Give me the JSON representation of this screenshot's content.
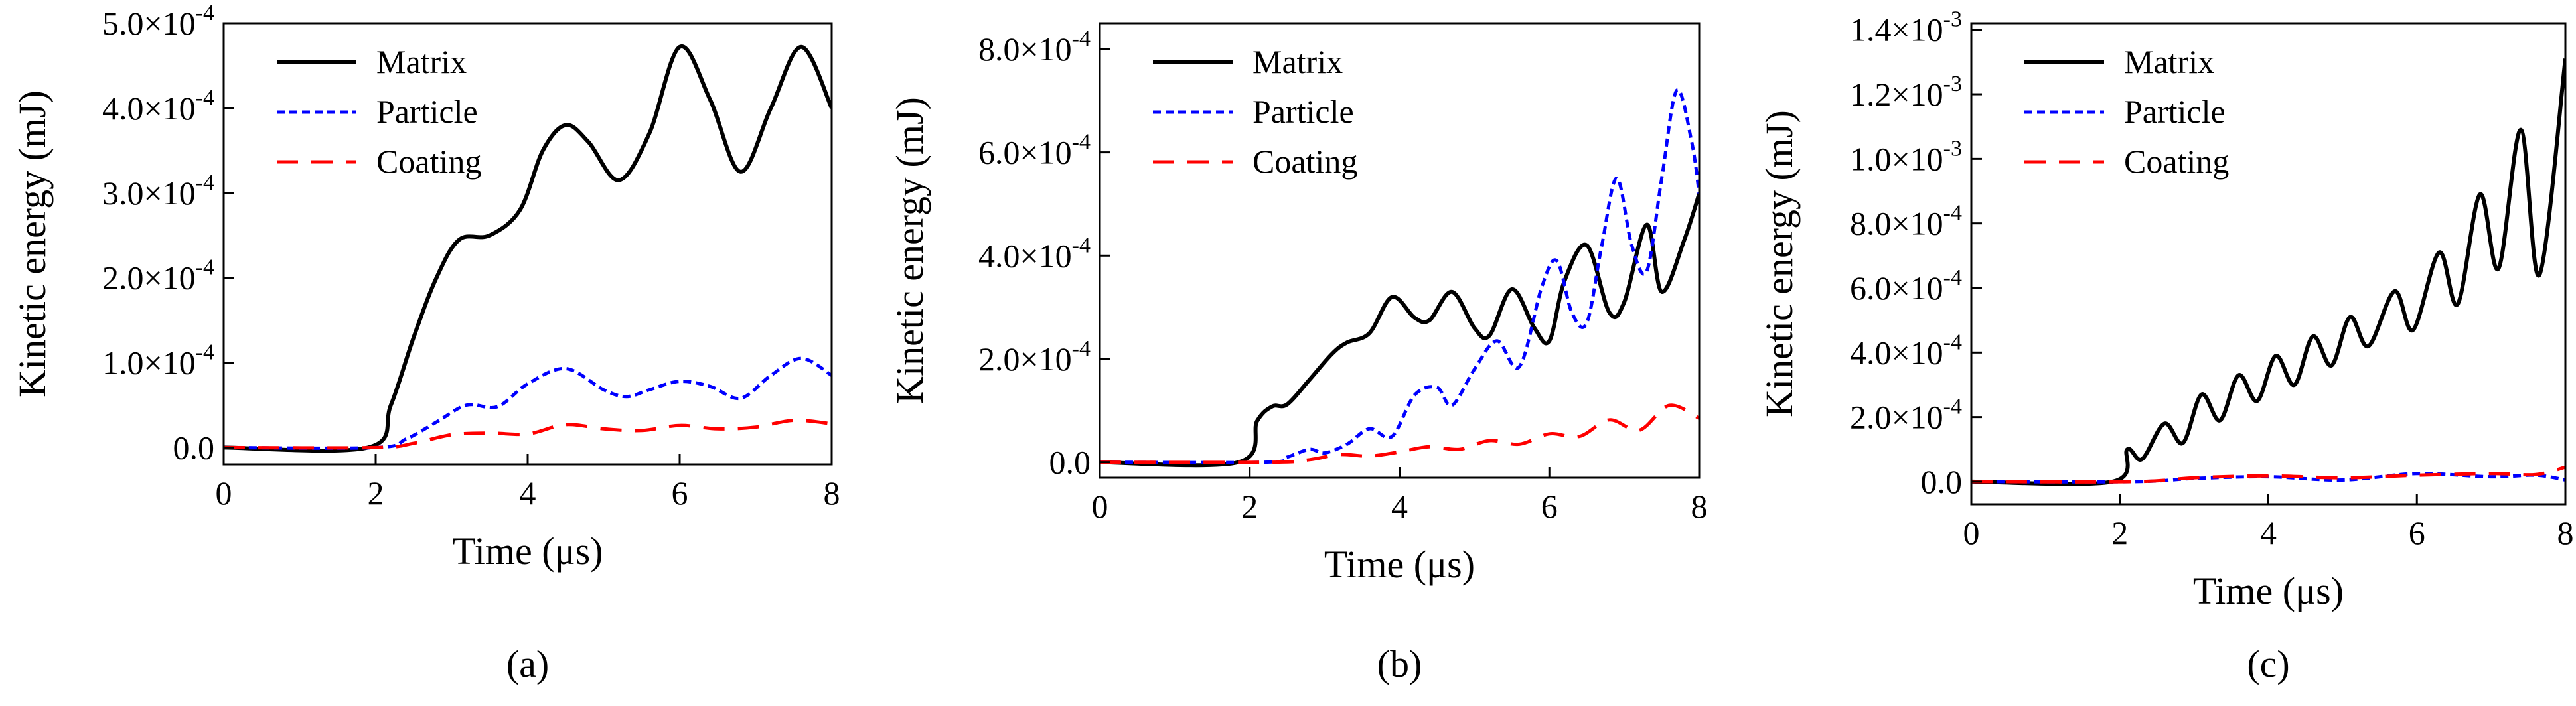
{
  "chart_data": [
    {
      "type": "line",
      "caption": "(a)",
      "xlabel": "Time (μs)",
      "ylabel": "Kinetic energy (mJ)",
      "xlim": [
        0,
        8
      ],
      "ylim": [
        -2e-05,
        0.0005
      ],
      "xticks": [
        0,
        2,
        4,
        6,
        8
      ],
      "xtick_labels": [
        "0",
        "2",
        "4",
        "6",
        "8"
      ],
      "yticks": [
        0,
        0.0001,
        0.0002,
        0.0003,
        0.0004,
        0.0005
      ],
      "ytick_labels": [
        "0.0",
        "1.0×10",
        "2.0×10",
        "3.0×10",
        "4.0×10",
        "5.0×10"
      ],
      "ytick_exponents": [
        "",
        "-4",
        "-4",
        "-4",
        "-4",
        "-4"
      ],
      "legend_position": "top-left",
      "grid": false,
      "series": [
        {
          "name": "Matrix",
          "color": "#000000",
          "dash": "solid",
          "x": [
            0,
            1.9,
            2.2,
            2.5,
            2.8,
            3.1,
            3.5,
            3.9,
            4.2,
            4.5,
            4.8,
            5.2,
            5.6,
            6.0,
            6.4,
            6.8,
            7.2,
            7.6,
            8.0
          ],
          "y": [
            0,
            0,
            5e-05,
            0.00013,
            0.0002,
            0.000245,
            0.00025,
            0.00028,
            0.00035,
            0.00038,
            0.00036,
            0.000315,
            0.00037,
            0.000472,
            0.00041,
            0.000325,
            0.0004,
            0.000472,
            0.0004
          ]
        },
        {
          "name": "Particle",
          "color": "#0000ff",
          "dash": "dotted",
          "x": [
            0,
            2.0,
            2.4,
            2.8,
            3.2,
            3.6,
            4.0,
            4.5,
            5.0,
            5.3,
            5.6,
            6.0,
            6.4,
            6.8,
            7.2,
            7.6,
            8.0
          ],
          "y": [
            0,
            0,
            1e-05,
            3e-05,
            5e-05,
            4.8e-05,
            7.5e-05,
            9.3e-05,
            6.8e-05,
            6e-05,
            6.8e-05,
            7.8e-05,
            7.2e-05,
            5.8e-05,
            8.5e-05,
            0.000105,
            8.5e-05
          ]
        },
        {
          "name": "Coating",
          "color": "#ff0000",
          "dash": "dashed",
          "x": [
            0,
            2.0,
            2.5,
            3.0,
            3.5,
            4.0,
            4.5,
            5.0,
            5.5,
            6.0,
            6.5,
            7.0,
            7.5,
            8.0
          ],
          "y": [
            0,
            0,
            5e-06,
            1.5e-05,
            1.7e-05,
            1.6e-05,
            2.7e-05,
            2.2e-05,
            2e-05,
            2.6e-05,
            2.2e-05,
            2.4e-05,
            3.2e-05,
            2.8e-05
          ]
        }
      ]
    },
    {
      "type": "line",
      "caption": "(b)",
      "xlabel": "Time (μs)",
      "ylabel": "Kinetic energy (mJ)",
      "xlim": [
        0,
        8
      ],
      "ylim": [
        -3e-05,
        0.00085
      ],
      "xticks": [
        0,
        2,
        4,
        6,
        8
      ],
      "xtick_labels": [
        "0",
        "2",
        "4",
        "6",
        "8"
      ],
      "yticks": [
        0,
        0.0002,
        0.0004,
        0.0006,
        0.0008
      ],
      "ytick_labels": [
        "0.0",
        "2.0×10",
        "4.0×10",
        "6.0×10",
        "8.0×10"
      ],
      "ytick_exponents": [
        "",
        "-4",
        "-4",
        "-4",
        "-4"
      ],
      "legend_position": "top-left",
      "grid": false,
      "series": [
        {
          "name": "Matrix",
          "color": "#000000",
          "dash": "solid",
          "x": [
            0,
            1.85,
            2.1,
            2.3,
            2.5,
            2.8,
            3.1,
            3.3,
            3.6,
            3.9,
            4.2,
            4.4,
            4.7,
            5.0,
            5.2,
            5.5,
            5.8,
            6.0,
            6.2,
            6.5,
            6.8,
            7.0,
            7.3,
            7.5,
            7.8,
            8.0
          ],
          "y": [
            0,
            0,
            8e-05,
            0.000108,
            0.000112,
            0.00016,
            0.00021,
            0.000232,
            0.00025,
            0.00032,
            0.00028,
            0.000275,
            0.00033,
            0.00026,
            0.000245,
            0.000335,
            0.00026,
            0.000235,
            0.00035,
            0.00042,
            0.00029,
            0.00031,
            0.00046,
            0.00033,
            0.00043,
            0.00052
          ]
        },
        {
          "name": "Particle",
          "color": "#0000ff",
          "dash": "dotted",
          "x": [
            0,
            2.2,
            2.5,
            2.8,
            3.0,
            3.3,
            3.6,
            3.9,
            4.2,
            4.5,
            4.7,
            5.0,
            5.3,
            5.6,
            5.9,
            6.1,
            6.3,
            6.5,
            6.7,
            6.9,
            7.1,
            7.3,
            7.5,
            7.7,
            7.9,
            8.0
          ],
          "y": [
            0,
            0,
            1e-05,
            2.5e-05,
            1.8e-05,
            3.5e-05,
            6.5e-05,
            5e-05,
            0.00013,
            0.000145,
            0.00011,
            0.00018,
            0.000235,
            0.000185,
            0.00034,
            0.00039,
            0.00029,
            0.00027,
            0.00042,
            0.00055,
            0.00042,
            0.00037,
            0.00055,
            0.00072,
            0.00062,
            0.00052
          ]
        },
        {
          "name": "Coating",
          "color": "#ff0000",
          "dash": "dashed",
          "x": [
            0,
            2.3,
            2.8,
            3.2,
            3.6,
            4.0,
            4.4,
            4.8,
            5.2,
            5.6,
            6.0,
            6.4,
            6.8,
            7.2,
            7.6,
            8.0
          ],
          "y": [
            0,
            0,
            5e-06,
            1.5e-05,
            1.2e-05,
            2e-05,
            3e-05,
            2.5e-05,
            4.2e-05,
            3.5e-05,
            5.5e-05,
            5e-05,
            8.2e-05,
            6.2e-05,
            0.00011,
            8.5e-05
          ]
        }
      ]
    },
    {
      "type": "line",
      "caption": "(c)",
      "xlabel": "Time (μs)",
      "ylabel": "Kinetic energy (mJ)",
      "xlim": [
        0,
        8
      ],
      "ylim": [
        -7e-05,
        0.00142
      ],
      "xticks": [
        0,
        2,
        4,
        6,
        8
      ],
      "xtick_labels": [
        "0",
        "2",
        "4",
        "6",
        "8"
      ],
      "yticks": [
        0,
        0.0002,
        0.0004,
        0.0006,
        0.0008,
        0.001,
        0.0012,
        0.0014
      ],
      "ytick_labels": [
        "0.0",
        "2.0×10",
        "4.0×10",
        "6.0×10",
        "8.0×10",
        "1.0×10",
        "1.2×10",
        "1.4×10"
      ],
      "ytick_exponents": [
        "",
        "-4",
        "-4",
        "-4",
        "-4",
        "-3",
        "-3",
        "-3"
      ],
      "legend_position": "top-left",
      "grid": false,
      "series": [
        {
          "name": "Matrix",
          "color": "#000000",
          "dash": "solid",
          "x": [
            0,
            1.9,
            2.1,
            2.3,
            2.6,
            2.85,
            3.1,
            3.35,
            3.6,
            3.85,
            4.1,
            4.35,
            4.6,
            4.85,
            5.1,
            5.35,
            5.7,
            5.95,
            6.3,
            6.55,
            6.85,
            7.1,
            7.4,
            7.65,
            8.0
          ],
          "y": [
            0,
            0,
            0.0001,
            7e-05,
            0.00018,
            0.00012,
            0.00027,
            0.00019,
            0.00033,
            0.00025,
            0.00039,
            0.0003,
            0.00045,
            0.00036,
            0.00051,
            0.00042,
            0.00059,
            0.00047,
            0.00071,
            0.00055,
            0.00089,
            0.00066,
            0.00109,
            0.00064,
            0.00131
          ]
        },
        {
          "name": "Particle",
          "color": "#0000ff",
          "dash": "dotted",
          "x": [
            0,
            2.2,
            3.0,
            4.0,
            5.0,
            6.0,
            7.0,
            7.6,
            8.0
          ],
          "y": [
            0,
            0,
            1e-05,
            1.5e-05,
            5e-06,
            2.5e-05,
            1.5e-05,
            2e-05,
            5e-06
          ]
        },
        {
          "name": "Coating",
          "color": "#ff0000",
          "dash": "dashed",
          "x": [
            0,
            2.2,
            3.0,
            4.0,
            5.0,
            6.0,
            7.0,
            7.6,
            8.0
          ],
          "y": [
            0,
            0,
            1.2e-05,
            1.8e-05,
            1.2e-05,
            2e-05,
            2.5e-05,
            2.2e-05,
            4.5e-05
          ]
        }
      ]
    }
  ]
}
